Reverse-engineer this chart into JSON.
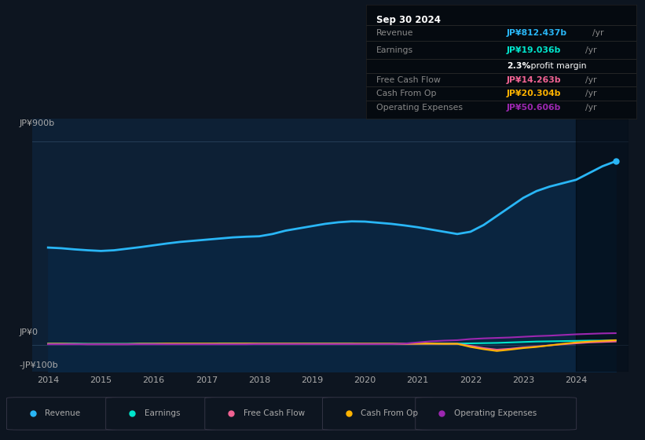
{
  "bg_color": "#0d1520",
  "chart_area_color": "#0d2035",
  "text_color": "#aaaaaa",
  "grid_color": "#1e3a50",
  "years_raw": [
    2014,
    2014.25,
    2014.5,
    2014.75,
    2015,
    2015.25,
    2015.5,
    2015.75,
    2016,
    2016.25,
    2016.5,
    2016.75,
    2017,
    2017.25,
    2017.5,
    2017.75,
    2018,
    2018.25,
    2018.5,
    2018.75,
    2019,
    2019.25,
    2019.5,
    2019.75,
    2020,
    2020.25,
    2020.5,
    2020.75,
    2021,
    2021.25,
    2021.5,
    2021.75,
    2022,
    2022.25,
    2022.5,
    2022.75,
    2023,
    2023.25,
    2023.5,
    2023.75,
    2024,
    2024.25,
    2024.5,
    2024.75
  ],
  "revenue": [
    430,
    427,
    422,
    418,
    415,
    418,
    425,
    432,
    440,
    448,
    455,
    460,
    465,
    470,
    475,
    478,
    480,
    490,
    505,
    515,
    525,
    535,
    542,
    546,
    545,
    540,
    535,
    528,
    520,
    510,
    500,
    490,
    500,
    530,
    570,
    610,
    650,
    680,
    700,
    715,
    730,
    760,
    790,
    812
  ],
  "earnings": [
    5,
    5,
    5,
    4,
    4,
    4,
    4,
    5,
    5,
    5,
    5,
    5,
    5,
    6,
    6,
    6,
    6,
    6,
    6,
    6,
    6,
    6,
    6,
    6,
    5,
    5,
    5,
    5,
    5,
    5,
    5,
    5,
    6,
    7,
    8,
    10,
    12,
    14,
    15,
    16,
    17,
    18,
    18,
    19
  ],
  "free_cash_flow": [
    3,
    3,
    3,
    2,
    2,
    2,
    2,
    3,
    3,
    3,
    3,
    3,
    3,
    3,
    3,
    4,
    4,
    4,
    4,
    4,
    3,
    3,
    3,
    3,
    3,
    3,
    3,
    3,
    4,
    4,
    4,
    4,
    -5,
    -15,
    -22,
    -18,
    -12,
    -8,
    -3,
    2,
    6,
    10,
    12,
    14
  ],
  "cash_from_op": [
    4,
    4,
    3,
    3,
    3,
    3,
    3,
    4,
    4,
    5,
    5,
    5,
    5,
    5,
    5,
    5,
    5,
    5,
    5,
    5,
    5,
    5,
    5,
    5,
    5,
    5,
    5,
    5,
    5,
    5,
    4,
    4,
    -10,
    -20,
    -28,
    -22,
    -15,
    -10,
    -3,
    4,
    10,
    14,
    17,
    20
  ],
  "operating_expenses": [
    2,
    2,
    2,
    2,
    2,
    2,
    2,
    2,
    2,
    2,
    2,
    2,
    2,
    2,
    2,
    2,
    3,
    3,
    3,
    3,
    3,
    3,
    3,
    3,
    3,
    3,
    3,
    5,
    10,
    15,
    18,
    20,
    25,
    28,
    30,
    32,
    35,
    38,
    40,
    43,
    46,
    48,
    50,
    51
  ],
  "revenue_color": "#29b6f6",
  "earnings_color": "#00e5cc",
  "free_cash_flow_color": "#f06292",
  "cash_from_op_color": "#ffb300",
  "operating_expenses_color": "#9c27b0",
  "ylim_min": -120,
  "ylim_max": 1000,
  "xlim_min": 2013.7,
  "xlim_max": 2025.0,
  "xlabel_years": [
    "2014",
    "2015",
    "2016",
    "2017",
    "2018",
    "2019",
    "2020",
    "2021",
    "2022",
    "2023",
    "2024"
  ],
  "info_box": {
    "date": "Sep 30 2024",
    "revenue_label": "Revenue",
    "revenue_value": "JP¥812.437b",
    "earnings_label": "Earnings",
    "earnings_value": "JP¥19.036b",
    "margin_text_bold": "2.3%",
    "margin_text_rest": " profit margin",
    "fcf_label": "Free Cash Flow",
    "fcf_value": "JP¥14.263b",
    "cfo_label": "Cash From Op",
    "cfo_value": "JP¥20.304b",
    "opex_label": "Operating Expenses",
    "opex_value": "JP¥50.606b"
  },
  "legend_items": [
    "Revenue",
    "Earnings",
    "Free Cash Flow",
    "Cash From Op",
    "Operating Expenses"
  ],
  "legend_colors": [
    "#29b6f6",
    "#00e5cc",
    "#f06292",
    "#ffb300",
    "#9c27b0"
  ],
  "dark_overlay_start": 2024.0,
  "dark_overlay_end": 2025.0
}
